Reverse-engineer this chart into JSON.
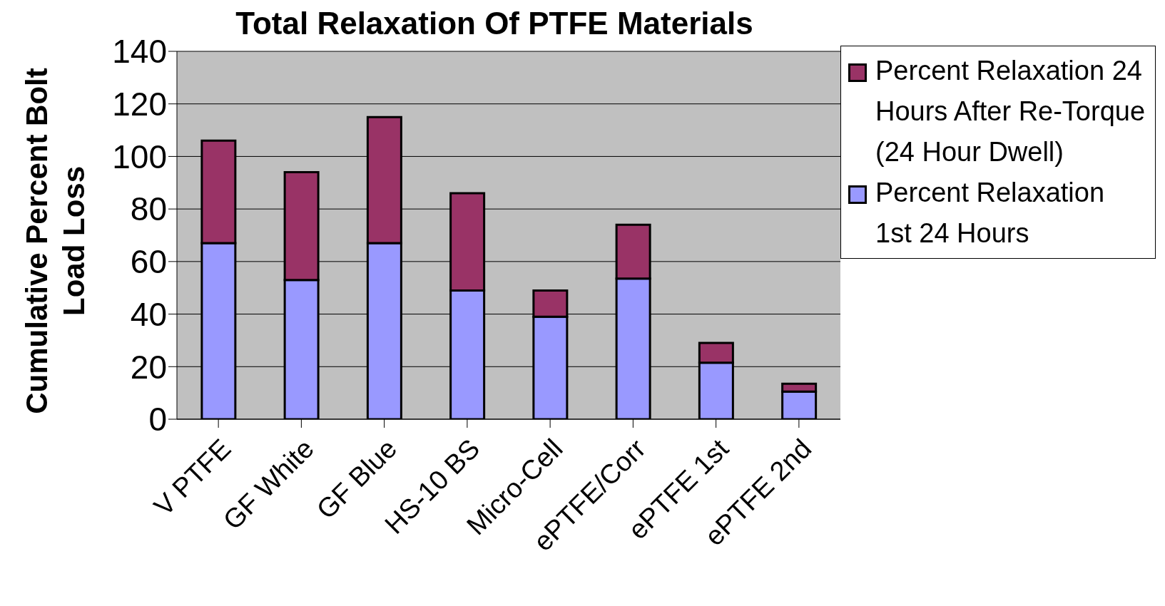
{
  "chart_data": {
    "type": "bar",
    "title": "Total Relaxation Of PTFE Materials",
    "ylabel": "Cumulative Percent Bolt Load Loss",
    "categories": [
      "V PTFE",
      "GF White",
      "GF Blue",
      "HS-10 BS",
      "Micro-Cell",
      "ePTFE/Corr",
      "ePTFE 1st",
      "ePTFE 2nd"
    ],
    "stacked": true,
    "series": [
      {
        "name": "Percent Relaxation 1st 24 Hours",
        "color": "#9999ff",
        "values": [
          67,
          53,
          67,
          49,
          39,
          53.5,
          21.5,
          10.5
        ]
      },
      {
        "name": "Percent Relaxation 24 Hours After Re-Torque (24 Hour Dwell)",
        "color": "#993366",
        "values": [
          39,
          41,
          48,
          37,
          10,
          20.5,
          7.5,
          3
        ]
      }
    ],
    "ylim": [
      0,
      140
    ],
    "yticks": [
      0,
      20,
      40,
      60,
      80,
      100,
      120,
      140
    ],
    "grid": "y",
    "legend": "top right"
  }
}
